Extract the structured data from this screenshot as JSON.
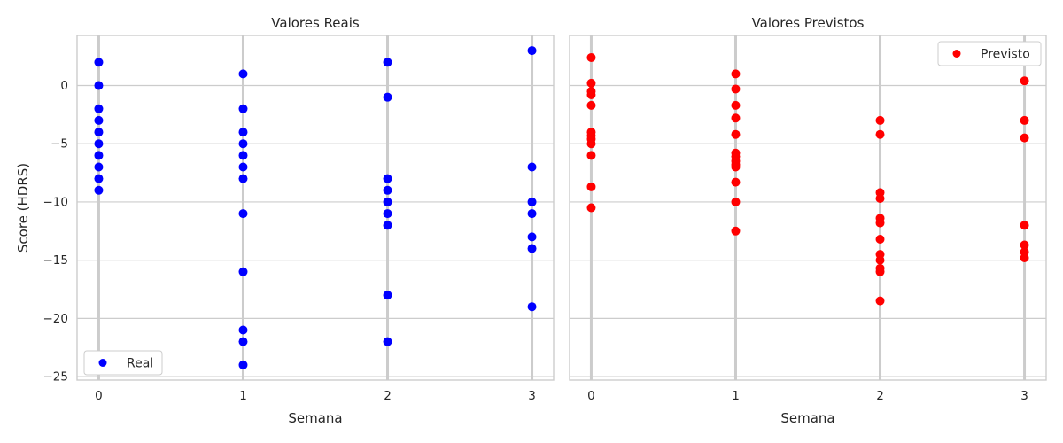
{
  "chart_data": [
    {
      "type": "scatter",
      "title": "Valores Reais",
      "xlabel": "Semana",
      "ylabel": "Score (HDRS)",
      "xlim": [
        -0.15,
        3.15
      ],
      "ylim": [
        -25.3,
        4.3
      ],
      "xticks": [
        0,
        1,
        2,
        3
      ],
      "yticks": [
        -25,
        -20,
        -15,
        -10,
        -5,
        0
      ],
      "grid": true,
      "legend_position": "lower-left",
      "series": [
        {
          "name": "Real",
          "color": "#0000ff",
          "points": [
            [
              0,
              2
            ],
            [
              0,
              0
            ],
            [
              0,
              -2
            ],
            [
              0,
              -3
            ],
            [
              0,
              -4
            ],
            [
              0,
              -5
            ],
            [
              0,
              -6
            ],
            [
              0,
              -7
            ],
            [
              0,
              -8
            ],
            [
              0,
              -9
            ],
            [
              1,
              1
            ],
            [
              1,
              -2
            ],
            [
              1,
              -4
            ],
            [
              1,
              -5
            ],
            [
              1,
              -6
            ],
            [
              1,
              -7
            ],
            [
              1,
              -8
            ],
            [
              1,
              -11
            ],
            [
              1,
              -16
            ],
            [
              1,
              -21
            ],
            [
              1,
              -22
            ],
            [
              1,
              -24
            ],
            [
              2,
              2
            ],
            [
              2,
              -1
            ],
            [
              2,
              -8
            ],
            [
              2,
              -9
            ],
            [
              2,
              -10
            ],
            [
              2,
              -11
            ],
            [
              2,
              -12
            ],
            [
              2,
              -18
            ],
            [
              2,
              -22
            ],
            [
              3,
              3
            ],
            [
              3,
              -7
            ],
            [
              3,
              -10
            ],
            [
              3,
              -11
            ],
            [
              3,
              -13
            ],
            [
              3,
              -14
            ],
            [
              3,
              -19
            ]
          ]
        }
      ]
    },
    {
      "type": "scatter",
      "title": "Valores Previstos",
      "xlabel": "Semana",
      "ylabel": "",
      "xlim": [
        -0.15,
        3.15
      ],
      "ylim": [
        -25.3,
        4.3
      ],
      "xticks": [
        0,
        1,
        2,
        3
      ],
      "yticks": [
        -25,
        -20,
        -15,
        -10,
        -5,
        0
      ],
      "grid": true,
      "shared_y": true,
      "legend_position": "upper-right",
      "series": [
        {
          "name": "Previsto",
          "color": "#ff0000",
          "points": [
            [
              0,
              2.4
            ],
            [
              0,
              0.2
            ],
            [
              0,
              -0.5
            ],
            [
              0,
              -0.8
            ],
            [
              0,
              -1.7
            ],
            [
              0,
              -4.0
            ],
            [
              0,
              -4.3
            ],
            [
              0,
              -4.6
            ],
            [
              0,
              -5.0
            ],
            [
              0,
              -6.0
            ],
            [
              0,
              -8.7
            ],
            [
              0,
              -10.5
            ],
            [
              1,
              1.0
            ],
            [
              1,
              -0.3
            ],
            [
              1,
              -1.7
            ],
            [
              1,
              -2.8
            ],
            [
              1,
              -4.2
            ],
            [
              1,
              -5.8
            ],
            [
              1,
              -6.1
            ],
            [
              1,
              -6.5
            ],
            [
              1,
              -6.8
            ],
            [
              1,
              -7.0
            ],
            [
              1,
              -8.3
            ],
            [
              1,
              -10.0
            ],
            [
              1,
              -12.5
            ],
            [
              2,
              -3.0
            ],
            [
              2,
              -4.2
            ],
            [
              2,
              -9.2
            ],
            [
              2,
              -9.7
            ],
            [
              2,
              -11.4
            ],
            [
              2,
              -11.8
            ],
            [
              2,
              -13.2
            ],
            [
              2,
              -14.5
            ],
            [
              2,
              -15.0
            ],
            [
              2,
              -15.7
            ],
            [
              2,
              -16.0
            ],
            [
              2,
              -18.5
            ],
            [
              3,
              0.4
            ],
            [
              3,
              -3.0
            ],
            [
              3,
              -4.5
            ],
            [
              3,
              -12.0
            ],
            [
              3,
              -13.7
            ],
            [
              3,
              -14.3
            ],
            [
              3,
              -14.8
            ]
          ]
        }
      ]
    }
  ]
}
